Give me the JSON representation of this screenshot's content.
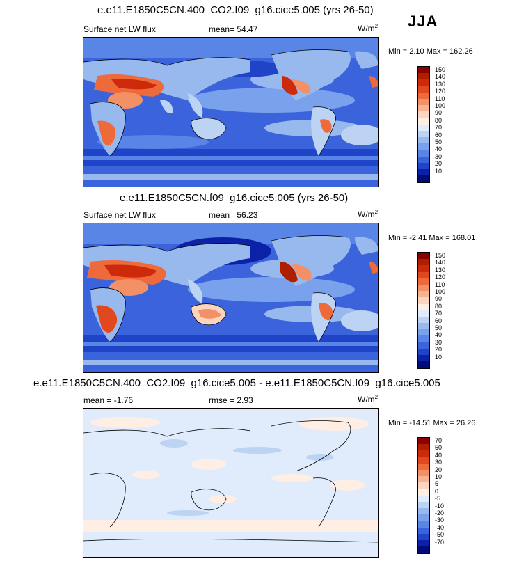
{
  "season": "JJA",
  "panels": [
    {
      "title": "e.e11.E1850C5CN.400_CO2.f09_g16.cice5.005 (yrs 26-50)",
      "left_label": "Surface net LW flux",
      "mean_label": "mean=",
      "mean_value": "54.47",
      "units_base": "W/m",
      "units_exp": "2",
      "minmax": "Min =   2.10 Max = 162.26",
      "colorbar": {
        "labels": [
          "150",
          "140",
          "130",
          "120",
          "110",
          "100",
          "90",
          "80",
          "70",
          "60",
          "50",
          "40",
          "30",
          "20",
          "10"
        ],
        "colors": [
          "#8b0000",
          "#b01e00",
          "#cc2a0a",
          "#e2481e",
          "#ef6a3b",
          "#f39066",
          "#f7b292",
          "#fbd5c0",
          "#ffeee4",
          "#e0ecfb",
          "#bcd3f4",
          "#98b9ee",
          "#7aa2ec",
          "#5885e6",
          "#3b64dc",
          "#1f44c8",
          "#0b22a8",
          "#010b7a"
        ]
      }
    },
    {
      "title": "e.e11.E1850C5CN.f09_g16.cice5.005 (yrs 26-50)",
      "left_label": "Surface net LW flux",
      "mean_label": "mean=",
      "mean_value": "56.23",
      "units_base": "W/m",
      "units_exp": "2",
      "minmax": "Min =  -2.41 Max = 168.01",
      "colorbar": {
        "labels": [
          "150",
          "140",
          "130",
          "120",
          "110",
          "100",
          "90",
          "80",
          "70",
          "60",
          "50",
          "40",
          "30",
          "20",
          "10"
        ],
        "colors": [
          "#8b0000",
          "#b01e00",
          "#cc2a0a",
          "#e2481e",
          "#ef6a3b",
          "#f39066",
          "#f7b292",
          "#fbd5c0",
          "#ffeee4",
          "#e0ecfb",
          "#bcd3f4",
          "#98b9ee",
          "#7aa2ec",
          "#5885e6",
          "#3b64dc",
          "#1f44c8",
          "#0b22a8",
          "#010b7a"
        ]
      }
    },
    {
      "title": "e.e11.E1850C5CN.400_CO2.f09_g16.cice5.005 - e.e11.E1850C5CN.f09_g16.cice5.005",
      "left_label": "mean =  -1.76",
      "mid_label": "rmse =   2.93",
      "units_base": "W/m",
      "units_exp": "2",
      "minmax": "Min = -14.51 Max =  26.26",
      "colorbar": {
        "labels": [
          "70",
          "50",
          "40",
          "30",
          "20",
          "10",
          "5",
          "0",
          "-5",
          "-10",
          "-20",
          "-30",
          "-40",
          "-50",
          "-70"
        ],
        "colors": [
          "#8b0000",
          "#b01e00",
          "#cc2a0a",
          "#e2481e",
          "#ef6a3b",
          "#f39066",
          "#f7b292",
          "#fbd5c0",
          "#ffeee4",
          "#e0ecfb",
          "#bcd3f4",
          "#98b9ee",
          "#7aa2ec",
          "#5885e6",
          "#3b64dc",
          "#1f44c8",
          "#0b22a8",
          "#010b7a"
        ]
      }
    }
  ]
}
